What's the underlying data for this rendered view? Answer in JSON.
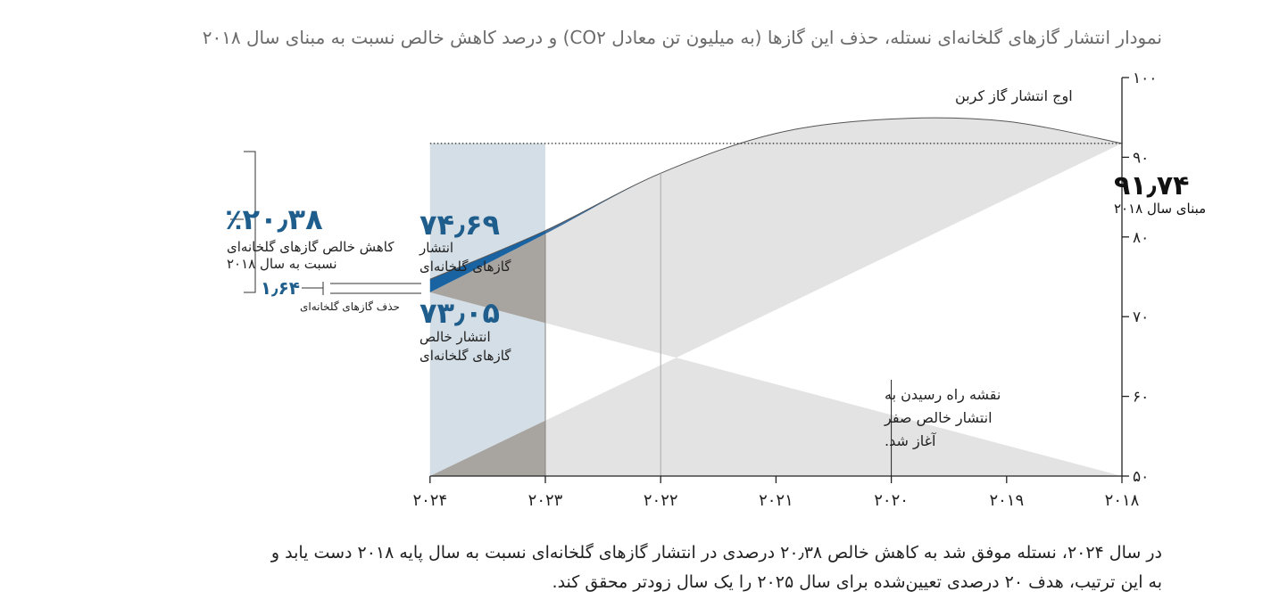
{
  "title": "نمودار انتشار گازهای گلخانه‌ای نستله، حذف این گازها (به میلیون تن معادل CO۲) و درصد کاهش خالص نسبت به مبنای سال ۲۰۱۸",
  "caption": [
    "در سال ۲۰۲۴، نستله موفق شد به کاهش خالص ۲۰٫۳۸ درصدی در انتشار گازهای گلخانه‌ای نسبت به سال پایه ۲۰۱۸ دست یابد و",
    "به این ترتیب، هدف ۲۰ درصدی تعیین‌شده برای سال ۲۰۲۵ را یک سال زودتر محقق کند."
  ],
  "chart_data": {
    "type": "area",
    "x": [
      2018,
      2019,
      2020,
      2021,
      2022,
      2023,
      2024
    ],
    "x_tick_labels": [
      "۲۰۱۸",
      "۲۰۱۹",
      "۲۰۲۰",
      "۲۰۲۱",
      "۲۰۲۲",
      "۲۰۲۳",
      "۲۰۲۴"
    ],
    "x_reversed": true,
    "ylim": [
      50,
      100
    ],
    "y_ticks": [
      50,
      60,
      70,
      80,
      90,
      100
    ],
    "y_tick_labels": [
      "۵۰",
      "۶۰",
      "۷۰",
      "۸۰",
      "۹۰",
      "۱۰۰"
    ],
    "y_axis_side": "right",
    "series": [
      {
        "name": "انتشار گازهای گلخانه‌ای",
        "values": [
          91.74,
          94.5,
          94.8,
          93.0,
          88.0,
          80.8,
          74.69
        ],
        "color": "#3f6f9e"
      },
      {
        "name": "انتشار خالص گازهای گلخانه‌ای",
        "values": [
          91.74,
          94.5,
          94.8,
          93.0,
          88.0,
          80.4,
          73.05
        ],
        "color": "#e3e3e3"
      }
    ],
    "baseline": {
      "value": 91.74,
      "value_label": "۹۱٫۷۴",
      "label": "مبنای سال ۲۰۱۸",
      "style": "dotted"
    },
    "peak_label": "اوج انتشار گاز کربن",
    "roadmap": {
      "x": 2020,
      "value": 62,
      "lines": [
        "نقشه راه رسیدن به",
        "انتشار خالص صفر",
        "آغاز شد."
      ]
    },
    "highlight_range": [
      2023,
      2024
    ],
    "colors": {
      "highlight_top": "#d4dee6",
      "highlight_bottom": "#a8a49f",
      "area": "#e3e3e3",
      "blue_band": "#1a63a3",
      "accent_text": "#1f5e8c"
    },
    "annotations": {
      "gross_value": "۷۴٫۶۹",
      "gross_label": [
        "انتشار",
        "گازهای گلخانه‌ای"
      ],
      "net_value": "۷۳٫۰۵",
      "net_label": [
        "انتشار خالص",
        "گازهای گلخانه‌ای"
      ],
      "removal_value": "۱٫۶۴",
      "removal_label": "حذف گازهای گلخانه‌ای",
      "reduction_value": "٪۲۰٫۳۸",
      "reduction_label": [
        "کاهش خالص گازهای گلخانه‌ای",
        "نسبت به سال ۲۰۱۸"
      ]
    }
  }
}
